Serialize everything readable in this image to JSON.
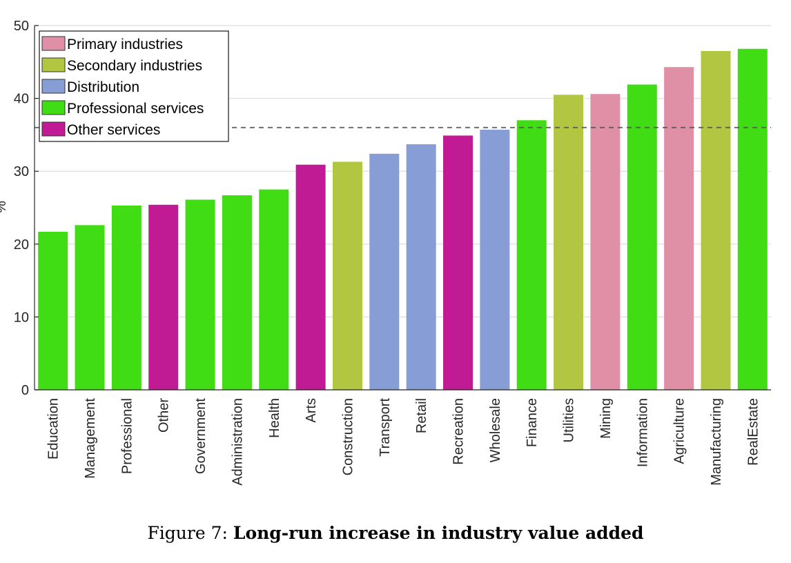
{
  "chart_data": {
    "type": "bar",
    "title": "",
    "xlabel": "",
    "ylabel": "%",
    "ylim": [
      0,
      50
    ],
    "yticks": [
      0,
      10,
      20,
      30,
      40,
      50
    ],
    "grid": "horizontal",
    "legend_position": "top-left",
    "reference_line": 36.0,
    "groups": [
      {
        "name": "Primary industries",
        "color": "#df8fa6"
      },
      {
        "name": "Secondary industries",
        "color": "#b3c641"
      },
      {
        "name": "Distribution",
        "color": "#879dd5"
      },
      {
        "name": "Professional services",
        "color": "#41dd14"
      },
      {
        "name": "Other services",
        "color": "#c01a95"
      }
    ],
    "categories": [
      "Education",
      "Management",
      "Professional",
      "Other",
      "Government",
      "Administration",
      "Health",
      "Arts",
      "Construction",
      "Transport",
      "Retail",
      "Recreation",
      "Wholesale",
      "Finance",
      "Utilities",
      "Mining",
      "Information",
      "Agriculture",
      "Manufacturing",
      "RealEstate"
    ],
    "values": [
      21.7,
      22.6,
      25.3,
      25.4,
      26.1,
      26.7,
      27.5,
      30.9,
      31.3,
      32.4,
      33.7,
      34.9,
      35.7,
      37.0,
      40.5,
      40.6,
      41.9,
      44.3,
      46.5,
      46.8
    ],
    "group_index": [
      3,
      3,
      3,
      4,
      3,
      3,
      3,
      4,
      1,
      2,
      2,
      4,
      2,
      3,
      1,
      0,
      3,
      0,
      1,
      3
    ]
  },
  "caption": {
    "prefix": "Figure 7: ",
    "title": "Long-run increase in industry value added"
  }
}
